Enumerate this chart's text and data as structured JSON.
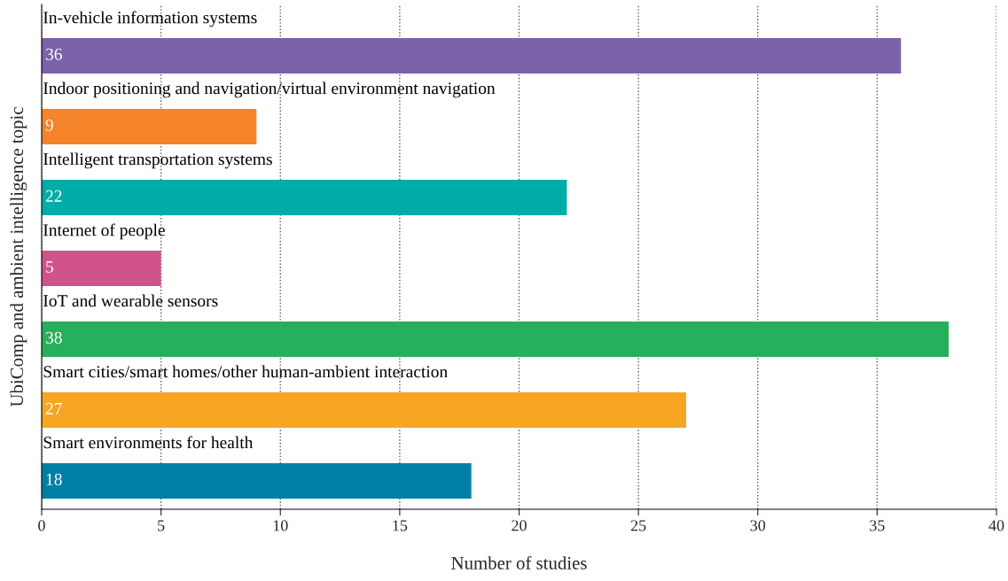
{
  "chart_data": {
    "type": "bar",
    "orientation": "horizontal",
    "xlabel": "Number of studies",
    "ylabel": "UbiComp and ambient intelligence topic",
    "categories": [
      "In-vehicle information systems",
      "Indoor positioning and navigation/virtual environment navigation",
      "Intelligent transportation systems",
      "Internet of people",
      "IoT and wearable sensors",
      "Smart cities/smart homes/other human-ambient interaction",
      "Smart environments for health"
    ],
    "values": [
      36,
      9,
      22,
      5,
      38,
      27,
      18
    ],
    "colors": [
      "#7b62a8",
      "#f5832a",
      "#00aca8",
      "#d0528a",
      "#27b05b",
      "#f6a623",
      "#007fa6"
    ],
    "xlim": [
      0,
      40
    ],
    "xticks": [
      0,
      5,
      10,
      15,
      20,
      25,
      30,
      35,
      40
    ],
    "grid": "x",
    "data_labels": true
  }
}
